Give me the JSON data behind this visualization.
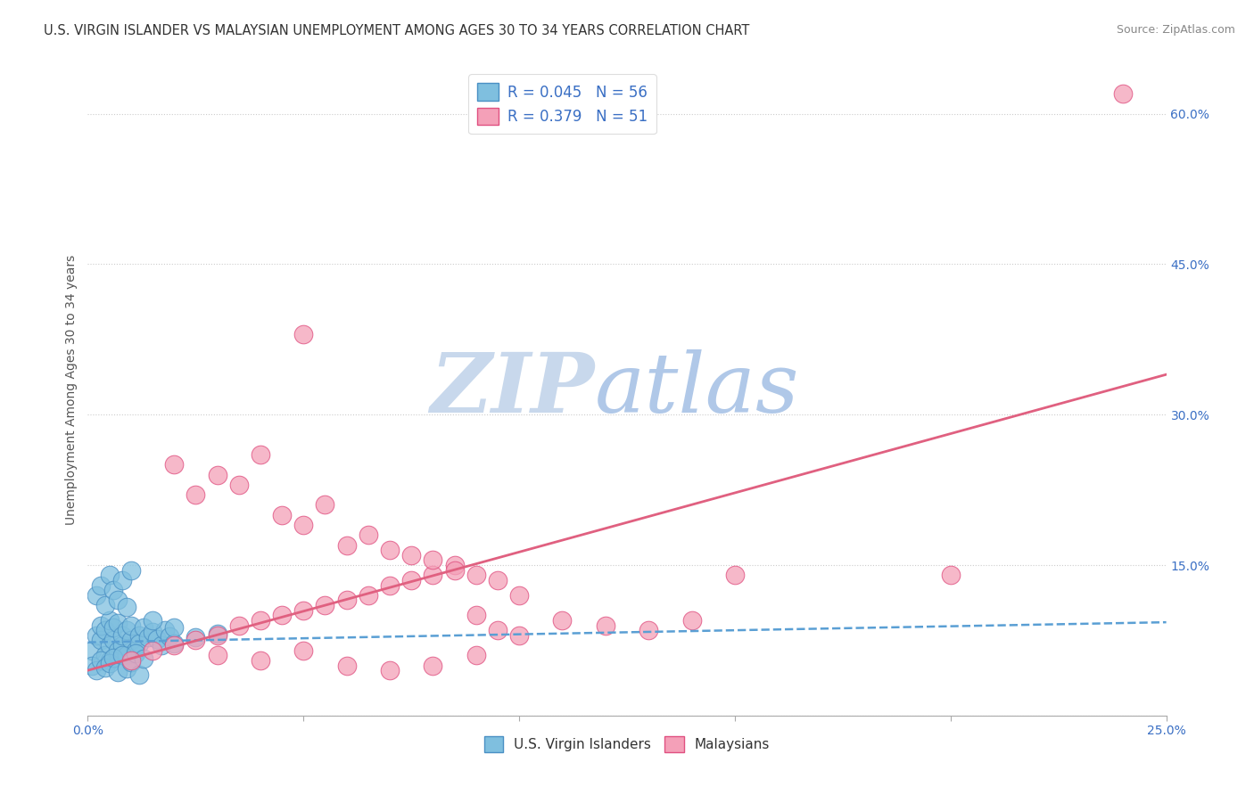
{
  "title": "U.S. VIRGIN ISLANDER VS MALAYSIAN UNEMPLOYMENT AMONG AGES 30 TO 34 YEARS CORRELATION CHART",
  "source": "Source: ZipAtlas.com",
  "ylabel": "Unemployment Among Ages 30 to 34 years",
  "xlim": [
    0.0,
    0.25
  ],
  "ylim": [
    0.0,
    0.65
  ],
  "x_ticks": [
    0.0,
    0.05,
    0.1,
    0.15,
    0.2,
    0.25
  ],
  "x_tick_labels": [
    "0.0%",
    "",
    "",
    "",
    "",
    "25.0%"
  ],
  "y_ticks_right": [
    0.0,
    0.15,
    0.3,
    0.45,
    0.6
  ],
  "y_tick_labels_right": [
    "",
    "15.0%",
    "30.0%",
    "45.0%",
    "60.0%"
  ],
  "background_color": "#ffffff",
  "grid_color": "#cccccc",
  "watermark_zip": "ZIP",
  "watermark_atlas": "atlas",
  "watermark_color_zip": "#c8d8ec",
  "watermark_color_atlas": "#b0c8e8",
  "vi_color": "#7fbfdf",
  "vi_edge_color": "#4a90c4",
  "my_color": "#f4a0b8",
  "my_edge_color": "#e05080",
  "vi_R": 0.045,
  "vi_N": 56,
  "my_R": 0.379,
  "my_N": 51,
  "legend_text_color": "#3a6fc4",
  "vi_line_color": "#5a9fd4",
  "my_line_color": "#e06080",
  "vi_line_intercept": 0.073,
  "vi_line_slope": 0.08,
  "my_line_intercept": 0.045,
  "my_line_slope": 1.18,
  "vi_points_x": [
    0.001,
    0.002,
    0.003,
    0.003,
    0.004,
    0.004,
    0.005,
    0.005,
    0.005,
    0.006,
    0.006,
    0.007,
    0.007,
    0.008,
    0.008,
    0.009,
    0.009,
    0.01,
    0.01,
    0.011,
    0.012,
    0.012,
    0.013,
    0.014,
    0.015,
    0.016,
    0.017,
    0.018,
    0.019,
    0.02,
    0.001,
    0.002,
    0.003,
    0.004,
    0.005,
    0.006,
    0.007,
    0.008,
    0.009,
    0.01,
    0.011,
    0.012,
    0.013,
    0.002,
    0.003,
    0.004,
    0.005,
    0.006,
    0.007,
    0.008,
    0.009,
    0.01,
    0.015,
    0.02,
    0.025,
    0.03
  ],
  "vi_points_y": [
    0.065,
    0.08,
    0.075,
    0.09,
    0.06,
    0.085,
    0.07,
    0.095,
    0.055,
    0.075,
    0.088,
    0.065,
    0.092,
    0.07,
    0.08,
    0.06,
    0.085,
    0.075,
    0.09,
    0.065,
    0.08,
    0.072,
    0.088,
    0.078,
    0.083,
    0.076,
    0.07,
    0.085,
    0.079,
    0.072,
    0.05,
    0.045,
    0.055,
    0.048,
    0.052,
    0.058,
    0.043,
    0.06,
    0.047,
    0.053,
    0.062,
    0.041,
    0.057,
    0.12,
    0.13,
    0.11,
    0.14,
    0.125,
    0.115,
    0.135,
    0.108,
    0.145,
    0.095,
    0.088,
    0.078,
    0.082
  ],
  "my_points_x": [
    0.01,
    0.015,
    0.02,
    0.025,
    0.03,
    0.035,
    0.04,
    0.045,
    0.05,
    0.055,
    0.06,
    0.065,
    0.07,
    0.075,
    0.08,
    0.085,
    0.09,
    0.095,
    0.1,
    0.11,
    0.12,
    0.13,
    0.14,
    0.03,
    0.04,
    0.05,
    0.06,
    0.07,
    0.08,
    0.09,
    0.02,
    0.025,
    0.03,
    0.035,
    0.04,
    0.045,
    0.05,
    0.055,
    0.06,
    0.065,
    0.07,
    0.075,
    0.08,
    0.085,
    0.09,
    0.095,
    0.1,
    0.15,
    0.2,
    0.24,
    0.05
  ],
  "my_points_y": [
    0.055,
    0.065,
    0.07,
    0.075,
    0.08,
    0.09,
    0.095,
    0.1,
    0.105,
    0.11,
    0.115,
    0.12,
    0.13,
    0.135,
    0.14,
    0.15,
    0.1,
    0.085,
    0.08,
    0.095,
    0.09,
    0.085,
    0.095,
    0.06,
    0.055,
    0.065,
    0.05,
    0.045,
    0.05,
    0.06,
    0.25,
    0.22,
    0.24,
    0.23,
    0.26,
    0.2,
    0.19,
    0.21,
    0.17,
    0.18,
    0.165,
    0.16,
    0.155,
    0.145,
    0.14,
    0.135,
    0.12,
    0.14,
    0.14,
    0.62,
    0.38
  ]
}
